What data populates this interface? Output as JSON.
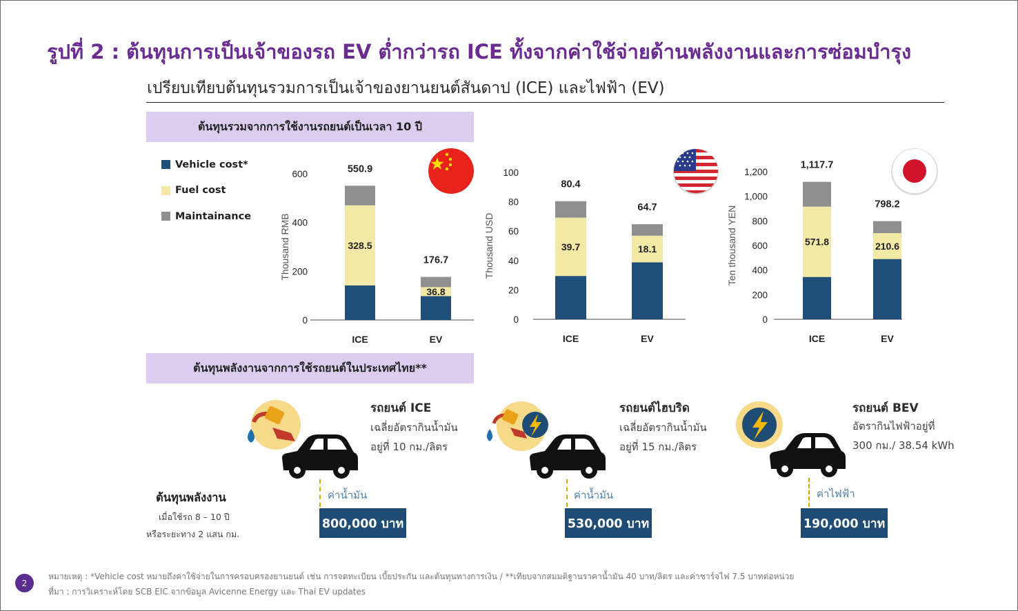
{
  "title": "รูปที่ 2 : ต้นทุนการเป็นเจ้าของรถ EV ต่ำกว่ารถ ICE ทั้งจากค่าใช้จ่ายด้านพลังงานและการซ่อมบำรุง",
  "subtitle": "เปรียบเทียบต้นทุนรวมการเป็นเจ้าของยานยนต์สันดาป (ICE) และไฟฟ้า (EV)",
  "band_top": "ต้นทุนรวมจากการใช้งานรถยนต์เป็นเวลา 10 ปี",
  "band_bottom": "ต้นทุนพลังงานจากการใช้รถยนต์ในประเทศไทย**",
  "legend": [
    {
      "label": "Vehicle cost*",
      "color": "#1f4e79"
    },
    {
      "label": "Fuel cost",
      "color": "#f1e9a5"
    },
    {
      "label": "Maintainance",
      "color": "#8f8f8f"
    }
  ],
  "colors": {
    "vehicle": "#1f4e79",
    "fuel": "#f1e9a5",
    "maint": "#8f8f8f",
    "accent": "#6a2c91",
    "band": "#dccdf0"
  },
  "chart_data": [
    {
      "type": "bar",
      "stacked": true,
      "flag": "china-flag-icon",
      "ylabel": "Thousand RMB",
      "ylim": [
        0,
        600
      ],
      "yticks": [
        "0",
        "200",
        "400",
        "600"
      ],
      "categories": [
        "ICE",
        "EV"
      ],
      "series": [
        {
          "name": "Vehicle cost*",
          "values": [
            142,
            98
          ]
        },
        {
          "name": "Fuel cost",
          "values": [
            328.5,
            36.8
          ]
        },
        {
          "name": "Maintainance",
          "values": [
            80.4,
            41.9
          ]
        }
      ],
      "totals": [
        "550.9",
        "176.7"
      ],
      "fuel_labels": [
        "328.5",
        "36.8"
      ]
    },
    {
      "type": "bar",
      "stacked": true,
      "flag": "usa-flag-icon",
      "ylabel": "Thousand USD",
      "ylim": [
        0,
        100
      ],
      "yticks": [
        "0",
        "20",
        "40",
        "60",
        "80",
        "100"
      ],
      "categories": [
        "ICE",
        "EV"
      ],
      "series": [
        {
          "name": "Vehicle cost*",
          "values": [
            29.5,
            38.8
          ]
        },
        {
          "name": "Fuel cost",
          "values": [
            39.7,
            18.1
          ]
        },
        {
          "name": "Maintainance",
          "values": [
            11.2,
            7.8
          ]
        }
      ],
      "totals": [
        "80.4",
        "64.7"
      ],
      "fuel_labels": [
        "39.7",
        "18.1"
      ]
    },
    {
      "type": "bar",
      "stacked": true,
      "flag": "japan-flag-icon",
      "ylabel": "Ten thousand YEN",
      "ylim": [
        0,
        1200
      ],
      "yticks": [
        "0",
        "200",
        "400",
        "600",
        "800",
        "1,000",
        "1,200"
      ],
      "categories": [
        "ICE",
        "EV"
      ],
      "series": [
        {
          "name": "Vehicle cost*",
          "values": [
            344,
            490
          ]
        },
        {
          "name": "Fuel cost",
          "values": [
            571.8,
            210.6
          ]
        },
        {
          "name": "Maintainance",
          "values": [
            201.9,
            97.6
          ]
        }
      ],
      "totals": [
        "1,117.7",
        "798.2"
      ],
      "fuel_labels": [
        "571.8",
        "210.6"
      ]
    }
  ],
  "cars": [
    {
      "title": "รถยนต์ ICE",
      "desc1": "เฉลี่ยอัตรากินน้ำมัน",
      "desc2": "อยู่ที่ 10 กม./ลิตร",
      "cost_label": "ค่าน้ำมัน",
      "cost": "800,000 บาท",
      "icons": "fuel-pump-icon"
    },
    {
      "title": "รถยนต์ไฮบริด",
      "desc1": "เฉลี่ยอัตรากินน้ำมัน",
      "desc2": "อยู่ที่ 15 กม./ลิตร",
      "cost_label": "ค่าน้ำมัน",
      "cost": "530,000 บาท",
      "icons": "fuel-pump-lightning-icon"
    },
    {
      "title": "รถยนต์ BEV",
      "desc1": "อัตรากินไฟฟ้าอยู่ที่",
      "desc2": "300 กม./ 38.54 kWh",
      "cost_label": "ค่าไฟฟ้า",
      "cost": "190,000 บาท",
      "icons": "lightning-icon"
    }
  ],
  "energy": {
    "head": "ต้นทุนพลังงาน",
    "note1": "เมื่อใช้รถ 8 – 10 ปี",
    "note2": "หรือระยะทาง 2 แสน กม."
  },
  "footnote1": "หมายเหตุ : *Vehicle cost หมายถึงค่าใช้จ่ายในการครอบครองยานยนต์ เช่น การจดทะเบียน เบี้ยประกัน และต้นทุนทางการเงิน / **เทียบจากสมมติฐานราคาน้ำมัน 40 บาท/ลิตร และค่าชาร์จไฟ 7.5 บาทต่อหน่วย",
  "footnote2": "ที่มา : การวิเคราะห์โดย SCB EIC จากข้อมูล Avicenne Energy และ Thai EV updates",
  "page_number": "2"
}
